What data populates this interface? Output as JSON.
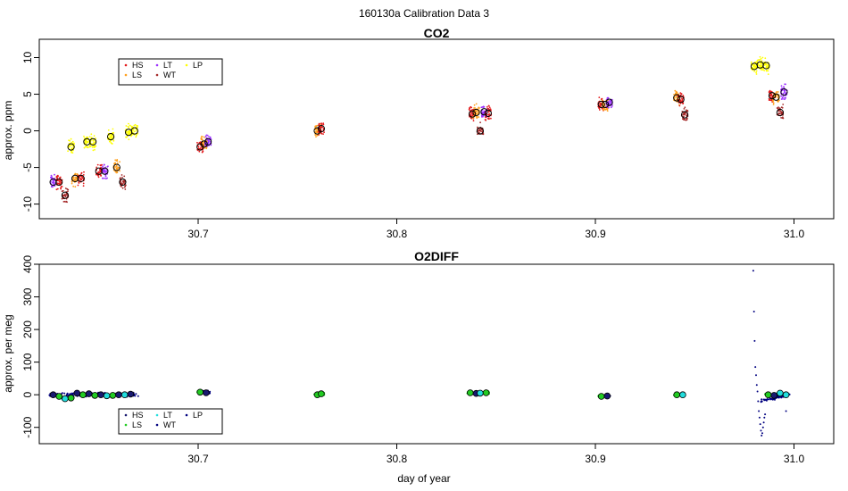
{
  "figure": {
    "title": "160130a   Calibration Data 3",
    "xlabel": "day of year"
  },
  "colors": {
    "HS": "#e41a1c",
    "LS": "#ff9f1c",
    "LT": "#9b30ff",
    "WT": "#a52a2a",
    "LP": "#ffff00",
    "o2_HS": "#191970",
    "o2_LS": "#22cc22",
    "o2_LT": "#22dddd",
    "o2_WT": "#000080",
    "o2_LP": "#000080"
  },
  "chart_data": [
    {
      "type": "scatter",
      "title": "CO2",
      "ylabel": "approx. ppm",
      "xlim": [
        30.62,
        31.02
      ],
      "ylim": [
        -12,
        12.5
      ],
      "xticks": [
        "30.7",
        "30.8",
        "30.9",
        "31.0"
      ],
      "xtick_values": [
        30.7,
        30.8,
        30.9,
        31.0
      ],
      "yticks": [
        "-10",
        "-5",
        "0",
        "5",
        "10"
      ],
      "ytick_values": [
        -10,
        -5,
        0,
        5,
        10
      ],
      "legend": {
        "position": "top-left",
        "entries": [
          "HS",
          "LS",
          "LT",
          "WT",
          "LP"
        ]
      },
      "groups": [
        {
          "x": 30.627,
          "y": -7.0,
          "series": "LT"
        },
        {
          "x": 30.63,
          "y": -7.0,
          "series": "HS"
        },
        {
          "x": 30.633,
          "y": -8.8,
          "series": "WT"
        },
        {
          "x": 30.636,
          "y": -2.2,
          "series": "LP"
        },
        {
          "x": 30.638,
          "y": -6.5,
          "series": "LS"
        },
        {
          "x": 30.641,
          "y": -6.5,
          "series": "HS"
        },
        {
          "x": 30.644,
          "y": -1.5,
          "series": "LP"
        },
        {
          "x": 30.647,
          "y": -1.5,
          "series": "LP"
        },
        {
          "x": 30.65,
          "y": -5.5,
          "series": "HS"
        },
        {
          "x": 30.653,
          "y": -5.5,
          "series": "LT"
        },
        {
          "x": 30.656,
          "y": -0.8,
          "series": "LP"
        },
        {
          "x": 30.659,
          "y": -5.0,
          "series": "LS"
        },
        {
          "x": 30.662,
          "y": -7.0,
          "series": "WT"
        },
        {
          "x": 30.665,
          "y": -0.2,
          "series": "LP"
        },
        {
          "x": 30.668,
          "y": 0.0,
          "series": "LP"
        },
        {
          "x": 30.701,
          "y": -2.2,
          "series": "HS"
        },
        {
          "x": 30.703,
          "y": -1.8,
          "series": "LS"
        },
        {
          "x": 30.705,
          "y": -1.5,
          "series": "LT"
        },
        {
          "x": 30.76,
          "y": 0.0,
          "series": "LS"
        },
        {
          "x": 30.762,
          "y": 0.3,
          "series": "HS"
        },
        {
          "x": 30.838,
          "y": 2.3,
          "series": "HS"
        },
        {
          "x": 30.84,
          "y": 2.5,
          "series": "LS"
        },
        {
          "x": 30.842,
          "y": 0.0,
          "series": "WT"
        },
        {
          "x": 30.844,
          "y": 2.6,
          "series": "LT"
        },
        {
          "x": 30.846,
          "y": 2.4,
          "series": "HS"
        },
        {
          "x": 30.903,
          "y": 3.6,
          "series": "HS"
        },
        {
          "x": 30.905,
          "y": 3.6,
          "series": "LS"
        },
        {
          "x": 30.907,
          "y": 3.9,
          "series": "LT"
        },
        {
          "x": 30.941,
          "y": 4.5,
          "series": "LS"
        },
        {
          "x": 30.943,
          "y": 4.3,
          "series": "HS"
        },
        {
          "x": 30.945,
          "y": 2.2,
          "series": "WT"
        },
        {
          "x": 30.98,
          "y": 8.8,
          "series": "LP"
        },
        {
          "x": 30.983,
          "y": 9.0,
          "series": "LP"
        },
        {
          "x": 30.986,
          "y": 8.9,
          "series": "LP"
        },
        {
          "x": 30.989,
          "y": 4.8,
          "series": "HS"
        },
        {
          "x": 30.991,
          "y": 4.6,
          "series": "LS"
        },
        {
          "x": 30.993,
          "y": 2.5,
          "series": "WT"
        },
        {
          "x": 30.995,
          "y": 5.3,
          "series": "LT"
        }
      ]
    },
    {
      "type": "scatter",
      "title": "O2DIFF",
      "ylabel": "approx. per meg",
      "xlim": [
        30.62,
        31.02
      ],
      "ylim": [
        -150,
        400
      ],
      "xticks": [
        "30.7",
        "30.8",
        "30.9",
        "31.0"
      ],
      "xtick_values": [
        30.7,
        30.8,
        30.9,
        31.0
      ],
      "yticks": [
        "-100",
        "0",
        "100",
        "200",
        "300",
        "400"
      ],
      "ytick_values": [
        -100,
        0,
        100,
        200,
        300,
        400
      ],
      "legend": {
        "position": "bottom-left",
        "entries": [
          "HS",
          "LS",
          "LT",
          "WT",
          "LP"
        ]
      },
      "groups": [
        {
          "x": 30.627,
          "y": 0,
          "series": "o2_HS"
        },
        {
          "x": 30.63,
          "y": -5,
          "series": "o2_LS"
        },
        {
          "x": 30.633,
          "y": -12,
          "series": "o2_LT"
        },
        {
          "x": 30.636,
          "y": -10,
          "series": "o2_LS"
        },
        {
          "x": 30.639,
          "y": 5,
          "series": "o2_HS"
        },
        {
          "x": 30.642,
          "y": 0,
          "series": "o2_LS"
        },
        {
          "x": 30.645,
          "y": 3,
          "series": "o2_HS"
        },
        {
          "x": 30.648,
          "y": -2,
          "series": "o2_LS"
        },
        {
          "x": 30.651,
          "y": 0,
          "series": "o2_HS"
        },
        {
          "x": 30.654,
          "y": -3,
          "series": "o2_LT"
        },
        {
          "x": 30.657,
          "y": -2,
          "series": "o2_LS"
        },
        {
          "x": 30.66,
          "y": 0,
          "series": "o2_HS"
        },
        {
          "x": 30.663,
          "y": 0,
          "series": "o2_LT"
        },
        {
          "x": 30.666,
          "y": 2,
          "series": "o2_HS"
        },
        {
          "x": 30.701,
          "y": 8,
          "series": "o2_LS"
        },
        {
          "x": 30.704,
          "y": 6,
          "series": "o2_HS"
        },
        {
          "x": 30.76,
          "y": 0,
          "series": "o2_LS"
        },
        {
          "x": 30.762,
          "y": 3,
          "series": "o2_LS"
        },
        {
          "x": 30.837,
          "y": 6,
          "series": "o2_LS"
        },
        {
          "x": 30.84,
          "y": 4,
          "series": "o2_HS"
        },
        {
          "x": 30.842,
          "y": 5,
          "series": "o2_LT"
        },
        {
          "x": 30.845,
          "y": 6,
          "series": "o2_LS"
        },
        {
          "x": 30.903,
          "y": -5,
          "series": "o2_LS"
        },
        {
          "x": 30.906,
          "y": -4,
          "series": "o2_HS"
        },
        {
          "x": 30.941,
          "y": 0,
          "series": "o2_LS"
        },
        {
          "x": 30.944,
          "y": 0,
          "series": "o2_LT"
        },
        {
          "x": 30.987,
          "y": 0,
          "series": "o2_LS"
        },
        {
          "x": 30.99,
          "y": -2,
          "series": "o2_HS"
        },
        {
          "x": 30.993,
          "y": 5,
          "series": "o2_LT"
        },
        {
          "x": 30.996,
          "y": 0,
          "series": "o2_LT"
        }
      ]
    }
  ]
}
